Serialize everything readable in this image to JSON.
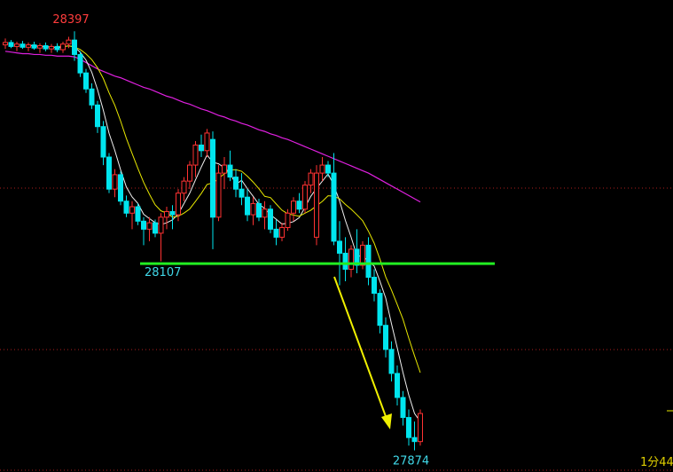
{
  "chart_data": {
    "type": "candlestick",
    "ylim": [
      27847,
      28436
    ],
    "up_color": "#ff3232",
    "down_color": "#00e5ee",
    "open": [
      28380,
      28383,
      28378,
      28381,
      28377,
      28380,
      28376,
      28379,
      28375,
      28378,
      28374,
      28381,
      28386,
      28368,
      28345,
      28325,
      28305,
      28278,
      28240,
      28200,
      28218,
      28185,
      28170,
      28178,
      28160,
      28150,
      28158,
      28145,
      28165,
      28172,
      28168,
      28195,
      28210,
      28230,
      28255,
      28248,
      28262,
      28165,
      28220,
      28230,
      28215,
      28200,
      28190,
      28168,
      28182,
      28165,
      28175,
      28150,
      28140,
      28152,
      28170,
      28185,
      28175,
      28205,
      28140,
      28220,
      28230,
      28220,
      28135,
      28120,
      28100,
      28125,
      28105,
      28130,
      28090,
      28070,
      28030,
      28000,
      27970,
      27940,
      27915,
      27890,
      27885
    ],
    "high": [
      28388,
      28386,
      28384,
      28385,
      28383,
      28384,
      28382,
      28383,
      28381,
      28382,
      28384,
      28390,
      28397,
      28372,
      28350,
      28332,
      28310,
      28285,
      28245,
      28225,
      28222,
      28192,
      28185,
      28182,
      28165,
      28165,
      28162,
      28170,
      28178,
      28180,
      28200,
      28215,
      28235,
      28260,
      28268,
      28275,
      28272,
      28230,
      28240,
      28248,
      28225,
      28220,
      28200,
      28190,
      28188,
      28185,
      28180,
      28162,
      28158,
      28175,
      28190,
      28195,
      28210,
      28225,
      28230,
      28240,
      28235,
      28245,
      28160,
      28140,
      28130,
      28150,
      28135,
      28140,
      28100,
      28075,
      28040,
      28010,
      27980,
      27948,
      27925,
      27910,
      27925
    ],
    "low": [
      28375,
      28376,
      28372,
      28375,
      28372,
      28374,
      28370,
      28372,
      28370,
      28371,
      28370,
      28376,
      28360,
      28340,
      28320,
      28300,
      28270,
      28230,
      28195,
      28190,
      28180,
      28165,
      28150,
      28155,
      28130,
      28135,
      28140,
      28110,
      28150,
      28150,
      28160,
      28185,
      28200,
      28215,
      28240,
      28240,
      28125,
      28160,
      28200,
      28210,
      28190,
      28180,
      28160,
      28155,
      28160,
      28150,
      28145,
      28130,
      28135,
      28148,
      28160,
      28170,
      28170,
      28195,
      28130,
      28210,
      28215,
      28130,
      28080,
      28085,
      28090,
      28095,
      28100,
      28080,
      28060,
      28020,
      27990,
      27960,
      27930,
      27905,
      27880,
      27874,
      27880
    ],
    "close": [
      28383,
      28378,
      28381,
      28377,
      28380,
      28376,
      28379,
      28375,
      28378,
      28374,
      28381,
      28386,
      28368,
      28345,
      28325,
      28305,
      28278,
      28240,
      28200,
      28218,
      28185,
      28170,
      28178,
      28160,
      28150,
      28158,
      28145,
      28165,
      28172,
      28168,
      28195,
      28210,
      28230,
      28255,
      28248,
      28270,
      28165,
      28220,
      28230,
      28215,
      28200,
      28190,
      28168,
      28182,
      28165,
      28175,
      28150,
      28140,
      28152,
      28170,
      28185,
      28175,
      28205,
      28220,
      28220,
      28230,
      28220,
      28135,
      28120,
      28100,
      28125,
      28105,
      28130,
      28090,
      28070,
      28030,
      28000,
      27970,
      27940,
      27915,
      27890,
      27885,
      27920
    ],
    "long_ma": {
      "color": "#e020e0",
      "values": [
        28372,
        28371,
        28370,
        28369,
        28369,
        28368,
        28368,
        28367,
        28367,
        28366,
        28366,
        28366,
        28365,
        28362,
        28358,
        28354,
        28350,
        28347,
        28344,
        28341,
        28339,
        28336,
        28333,
        28330,
        28327,
        28325,
        28322,
        28319,
        28316,
        28314,
        28311,
        28308,
        28306,
        28303,
        28300,
        28298,
        28295,
        28292,
        28290,
        28287,
        28285,
        28282,
        28280,
        28277,
        28274,
        28272,
        28269,
        28267,
        28264,
        28262,
        28259,
        28256,
        28253,
        28250,
        28247,
        28244,
        28241,
        28238,
        28235,
        28232,
        28229,
        28226,
        28223,
        28220,
        28216,
        28212,
        28208,
        28204,
        28200,
        28196,
        28192,
        28188,
        28184
      ]
    },
    "annotations": [
      {
        "text": "28397",
        "value": 28397,
        "index": 12,
        "color": "#ff3c3c"
      },
      {
        "text": "27874",
        "value": 27874,
        "index": 71,
        "color": "#40d8e8"
      }
    ],
    "support": {
      "value": 28107,
      "label": "28107",
      "color": "#22ee22"
    },
    "corner_text": "1分44"
  }
}
